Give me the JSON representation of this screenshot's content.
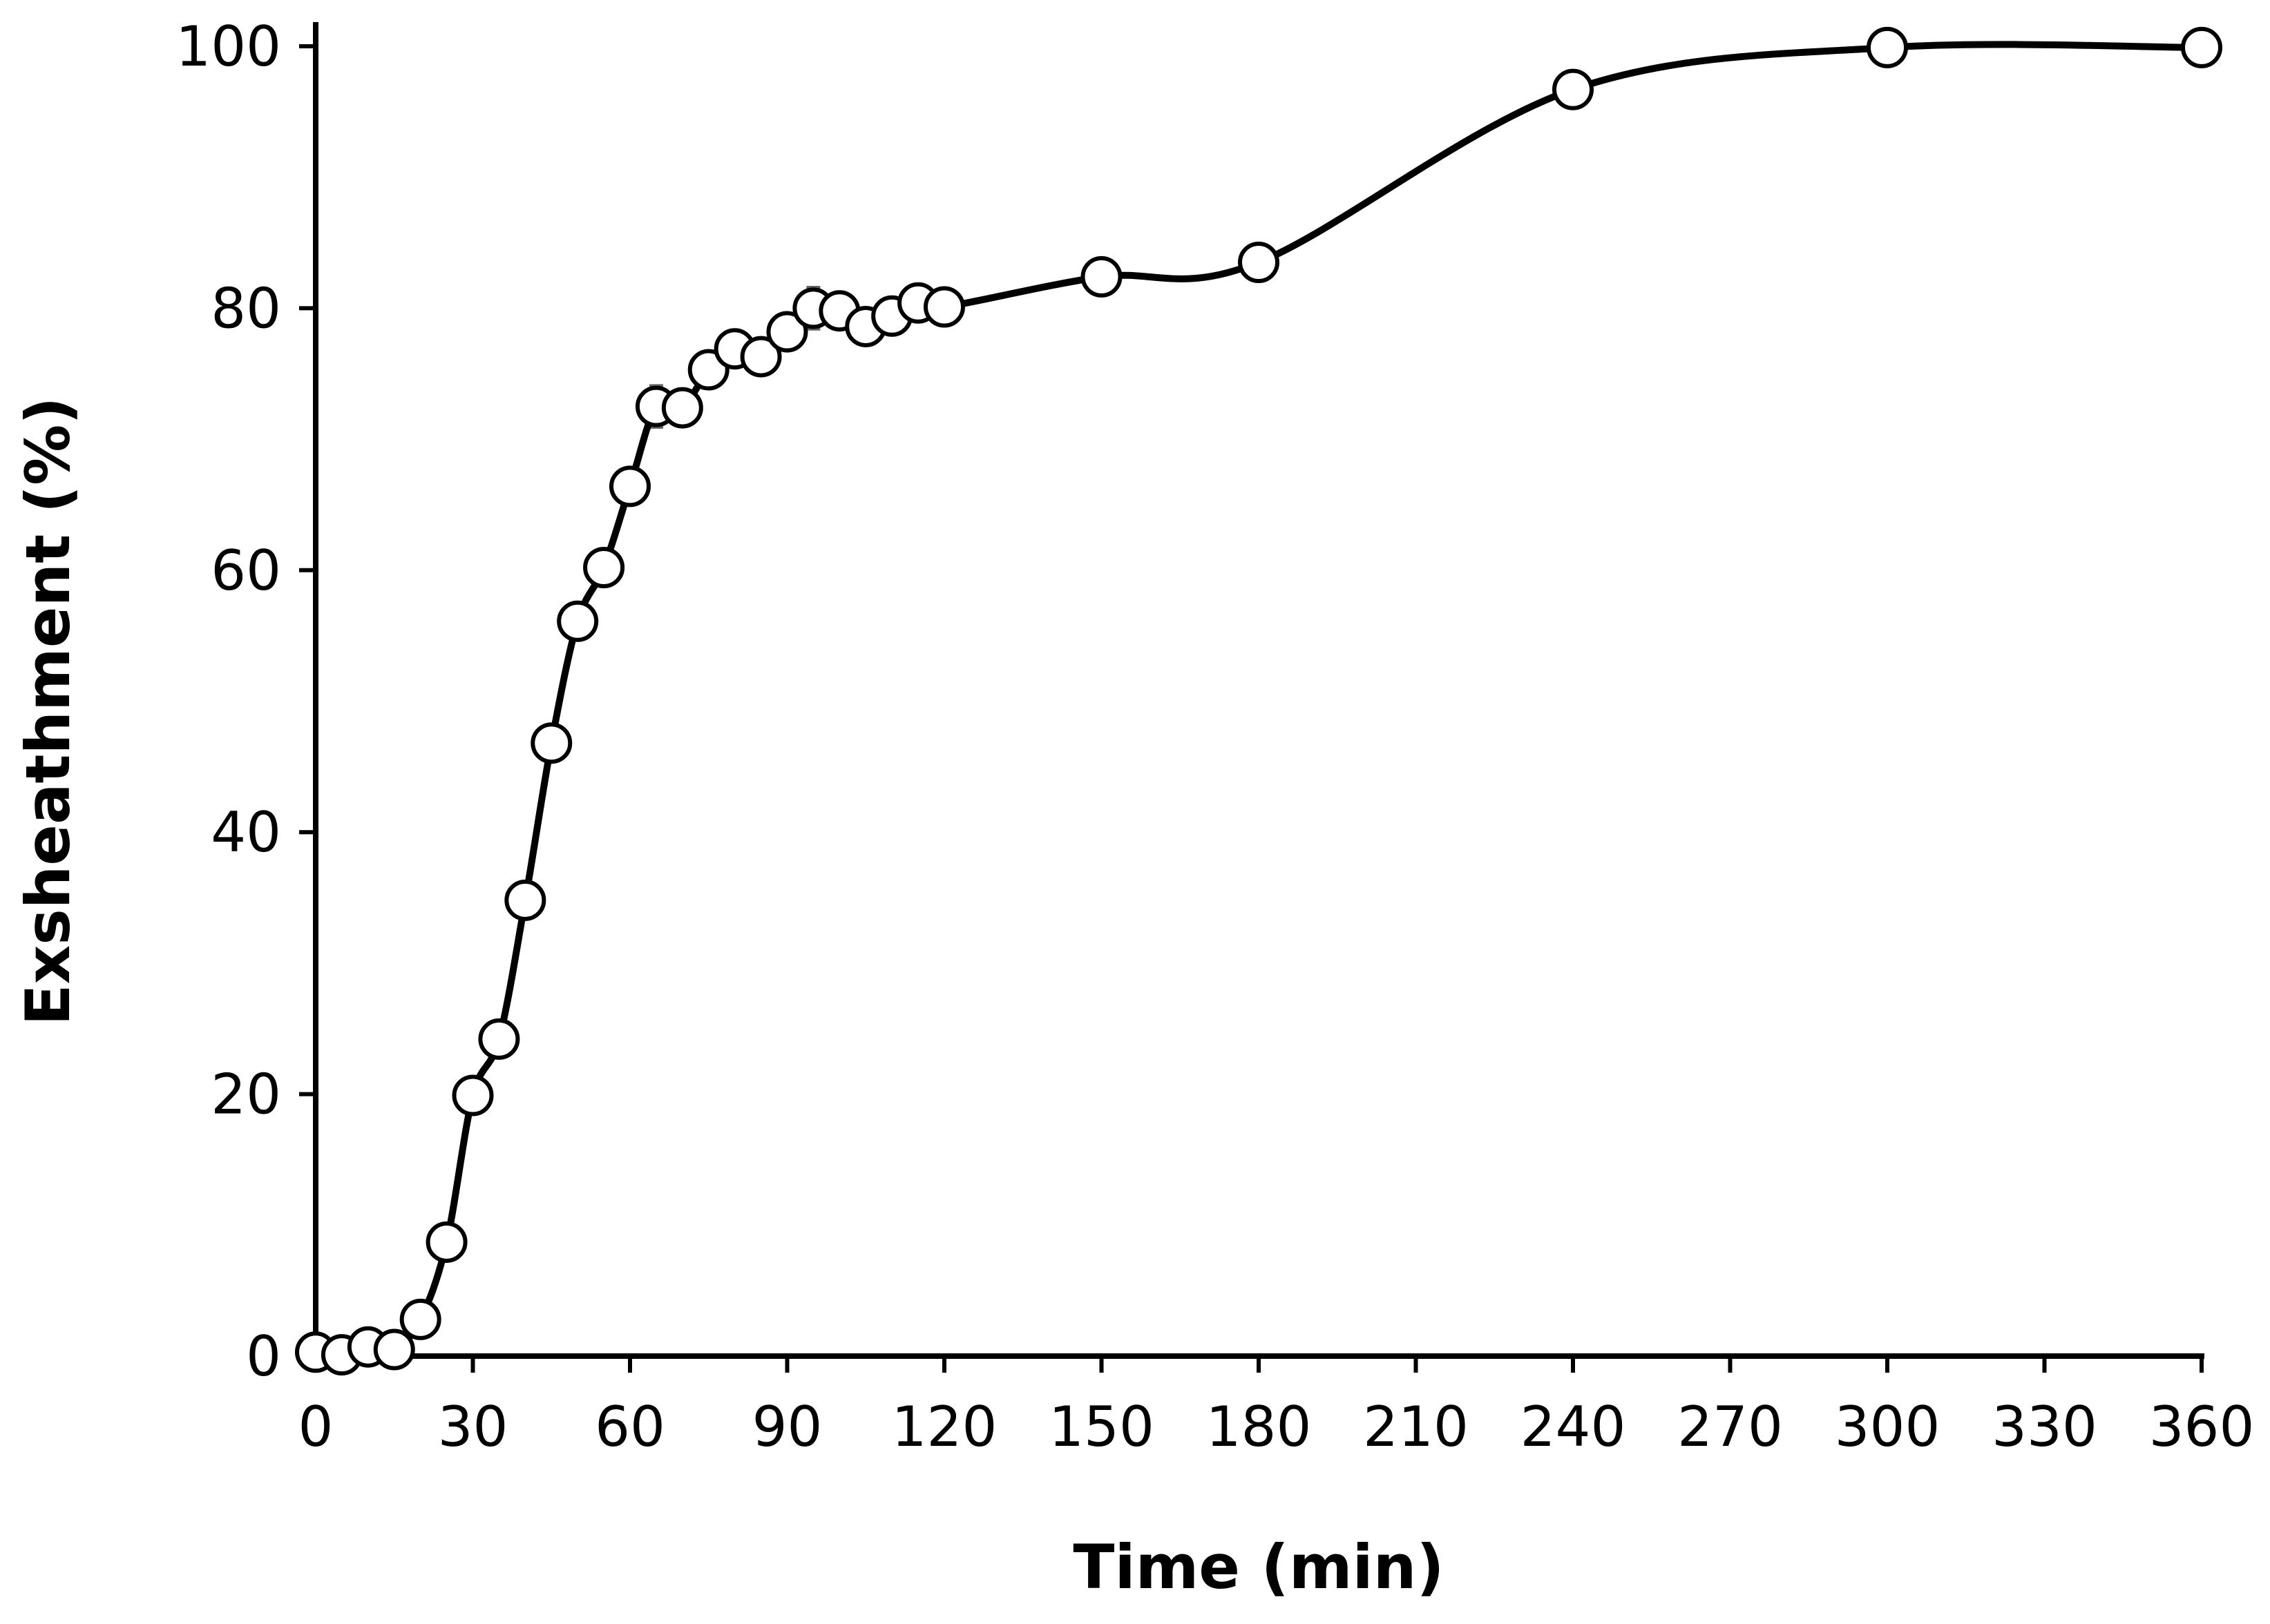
{
  "chart_data": {
    "type": "line",
    "title": "",
    "xlabel": "Time (min)",
    "ylabel": "Exsheathment (%)",
    "xlim": [
      0,
      360
    ],
    "ylim": [
      0,
      100
    ],
    "xticks": [
      0,
      30,
      60,
      90,
      120,
      150,
      180,
      210,
      240,
      270,
      300,
      330,
      360
    ],
    "yticks": [
      0,
      20,
      40,
      60,
      80,
      100
    ],
    "grid": false,
    "legend": "none",
    "marker": "open-circle",
    "smooth": true,
    "series": [
      {
        "x": [
          0,
          5,
          10,
          15,
          20,
          25,
          30,
          35,
          40,
          45,
          50,
          55,
          60,
          65,
          70,
          75,
          80,
          85,
          90,
          95,
          100,
          105,
          110,
          115,
          120,
          150,
          180,
          240,
          300,
          360
        ],
        "values": [
          0.3,
          0.1,
          0.7,
          0.5,
          2.8,
          8.7,
          19.9,
          24.2,
          34.8,
          46.8,
          56.1,
          60.2,
          66.4,
          72.5,
          72.4,
          75.3,
          76.9,
          76.3,
          78.2,
          80.0,
          79.8,
          78.6,
          79.4,
          80.4,
          80.1,
          82.4,
          83.5,
          96.7,
          99.9,
          99.9
        ],
        "errors": [
          0,
          0,
          0,
          0,
          0,
          0,
          0,
          0,
          0,
          0,
          0,
          0,
          0.8,
          1.6,
          0,
          0.8,
          0.5,
          1.3,
          0,
          1.6,
          0,
          0,
          0,
          0,
          0,
          0,
          0.3,
          0,
          0,
          0
        ]
      }
    ]
  }
}
